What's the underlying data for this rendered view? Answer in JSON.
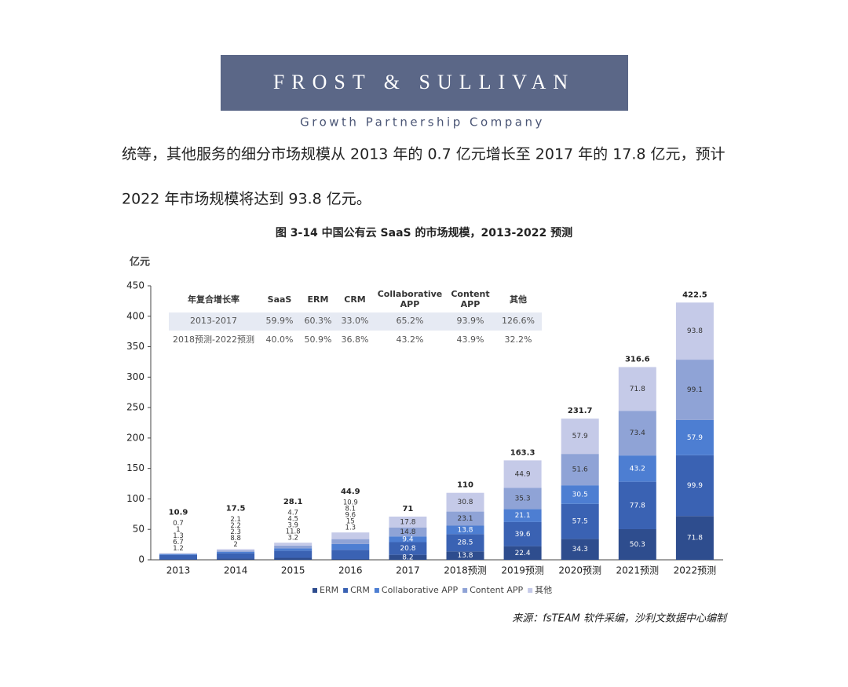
{
  "header": {
    "logo": "FROST & SULLIVAN",
    "tagline": "Growth Partnership Company"
  },
  "paragraph": [
    "统等，其他服务的细分市场规模从 2013 年的 0.7 亿元增长至 2017 年的 17.8 亿元，预计",
    "2022 年市场规模将达到 93.8 亿元。"
  ],
  "chart_data": {
    "type": "stacked-bar",
    "title": "图  3-14 中国公有云 SaaS 的市场规模，2013-2022 预测",
    "y_label": "亿元",
    "categories": [
      "2013",
      "2014",
      "2015",
      "2016",
      "2017",
      "2018预测",
      "2019预测",
      "2020预测",
      "2021预测",
      "2022预测"
    ],
    "series": [
      {
        "name": "ERM",
        "color": "#2e4d8e",
        "values": [
          1.2,
          2.0,
          3.2,
          1.3,
          8.2,
          13.8,
          22.4,
          34.3,
          50.3,
          71.8
        ]
      },
      {
        "name": "CRM",
        "color": "#3a62b3",
        "values": [
          6.7,
          8.8,
          11.8,
          15.0,
          20.8,
          28.5,
          39.6,
          57.5,
          77.8,
          99.9
        ]
      },
      {
        "name": "Collaborative APP",
        "color": "#4d7ed2",
        "values": [
          1.3,
          2.3,
          3.9,
          9.6,
          9.4,
          13.8,
          21.1,
          30.5,
          43.2,
          57.9
        ]
      },
      {
        "name": "Content APP",
        "color": "#8fa3d6",
        "values": [
          1.0,
          2.2,
          4.5,
          8.1,
          14.8,
          23.1,
          35.3,
          51.6,
          73.4,
          99.1
        ]
      },
      {
        "name": "其他",
        "color": "#c5cae8",
        "values": [
          0.7,
          2.1,
          4.7,
          10.9,
          17.8,
          30.8,
          44.9,
          57.9,
          71.8,
          93.8
        ]
      }
    ],
    "totals": [
      10.9,
      17.5,
      28.1,
      44.9,
      71.0,
      110.0,
      163.3,
      231.7,
      316.6,
      422.5
    ],
    "ylim": [
      0,
      450
    ],
    "yticks": [
      0,
      50,
      100,
      150,
      200,
      250,
      300,
      350,
      400,
      450
    ],
    "table": {
      "headers": [
        "年复合增长率",
        "SaaS",
        "ERM",
        "CRM",
        [
          "Collaborative",
          "APP"
        ],
        [
          "Content",
          "APP"
        ],
        "其他"
      ],
      "rows": [
        [
          "2013-2017",
          "59.9%",
          "60.3%",
          "33.0%",
          "65.2%",
          "93.9%",
          "126.6%"
        ],
        [
          "2018预测-2022预测",
          "40.0%",
          "50.9%",
          "36.8%",
          "43.2%",
          "43.9%",
          "32.2%"
        ]
      ]
    },
    "source": "来源：fsTEAM 软件采编，沙利文数据中心编制"
  }
}
